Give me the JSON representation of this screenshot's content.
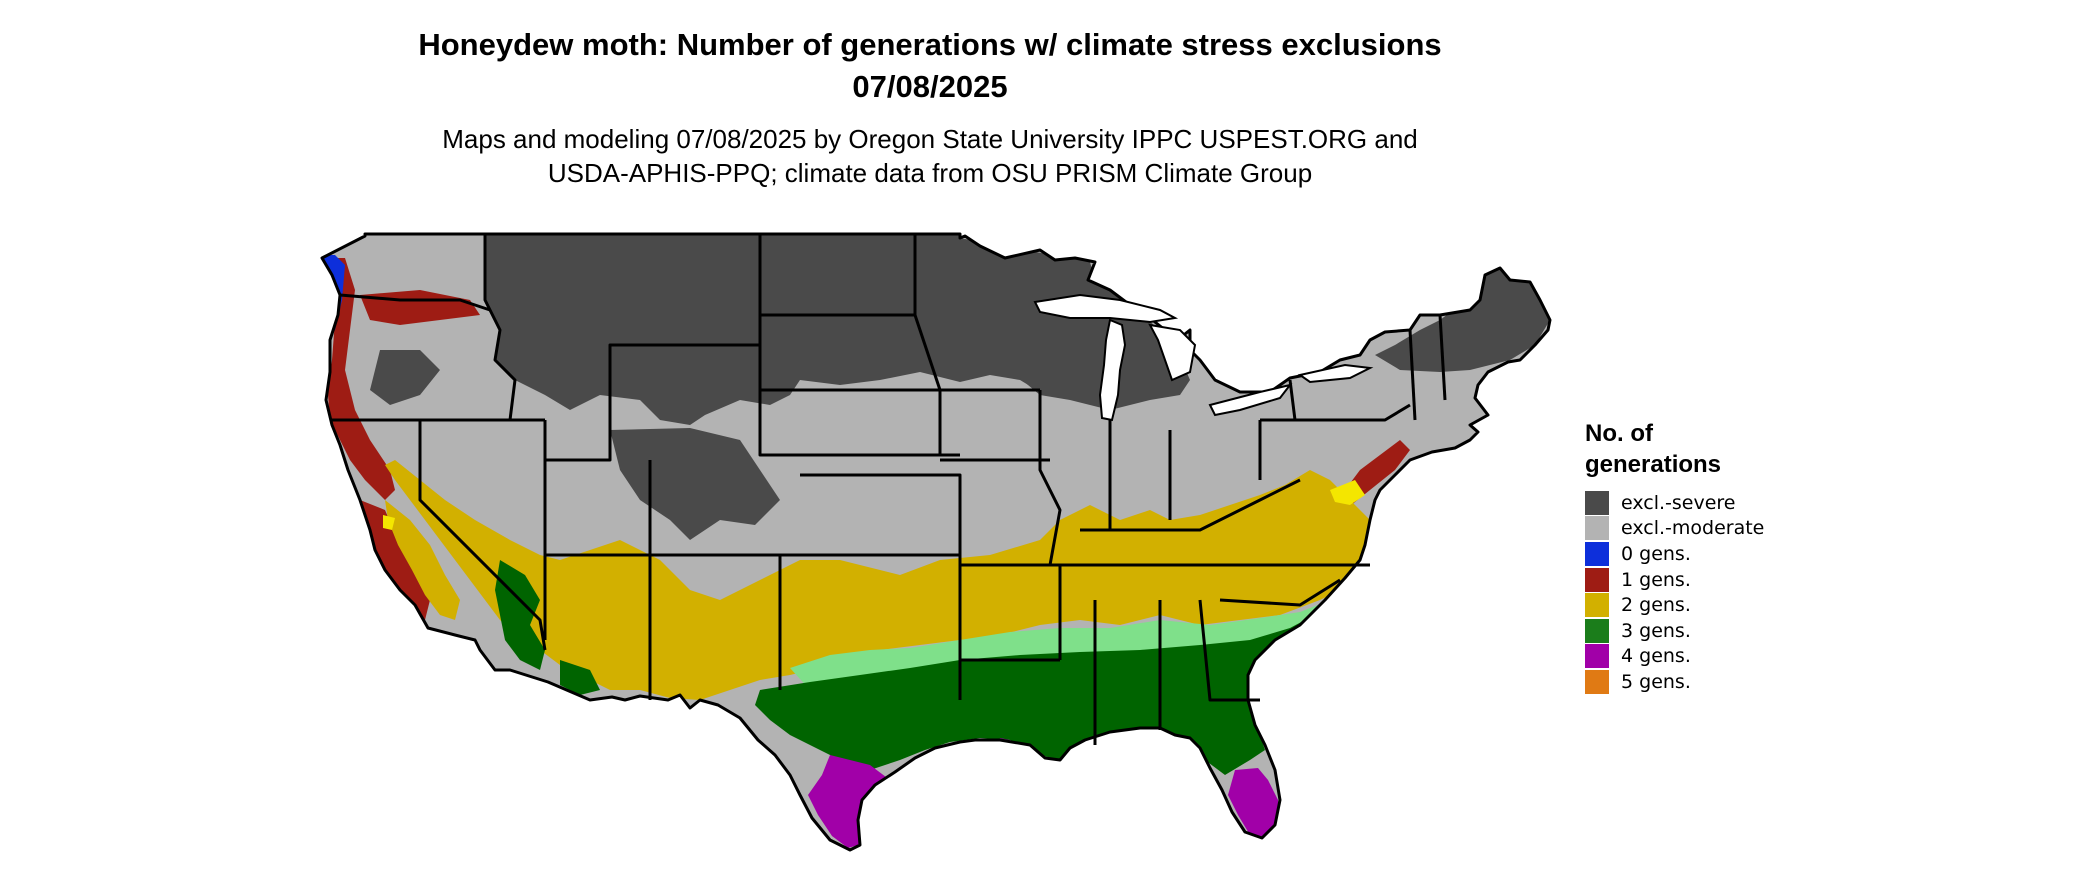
{
  "title_line1": "Honeydew moth: Number of generations w/ climate stress exclusions",
  "title_line2": "07/08/2025",
  "subtitle_line1": "Maps and modeling 07/08/2025 by Oregon State University IPPC USPEST.ORG and",
  "subtitle_line2": "USDA-APHIS-PPQ; climate data from OSU PRISM Climate Group",
  "legend": {
    "title_line1": "No. of",
    "title_line2": "generations",
    "items": [
      {
        "label": "excl.-severe",
        "color": "#4a4a4a"
      },
      {
        "label": "excl.-moderate",
        "color": "#b3b3b3"
      },
      {
        "label": "0 gens.",
        "color": "#0d2fdb"
      },
      {
        "label": "1 gens.",
        "color": "#9e1c14"
      },
      {
        "label": "2 gens.",
        "color": "#d2b000"
      },
      {
        "label": "3 gens.",
        "color": "#1b7d1b"
      },
      {
        "label": "4 gens.",
        "color": "#a100a8"
      },
      {
        "label": "5 gens.",
        "color": "#e07a14"
      }
    ]
  },
  "map_colors": {
    "excl_severe": "#4a4a4a",
    "excl_moderate": "#b3b3b3",
    "gens0": "#0d2fdb",
    "gens1": "#9e1c14",
    "gens2": "#d2b000",
    "gens2_bright": "#f4e600",
    "gens3": "#006400",
    "gens3_light": "#7fe08a",
    "gens4": "#a100a8",
    "gens5": "#e07a14",
    "state_border": "#000000"
  }
}
